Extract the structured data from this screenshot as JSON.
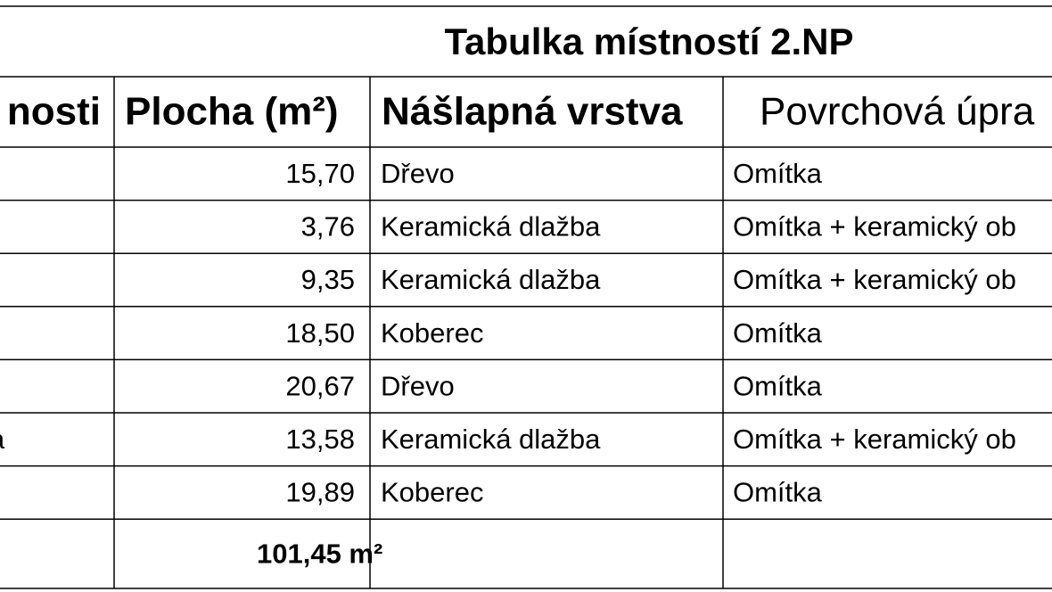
{
  "title": "Tabulka místností 2.NP",
  "table": {
    "header": [
      "nosti",
      "Plocha (m²)",
      "Nášlapná vrstva",
      "Povrchová úpra"
    ],
    "rows": [
      {
        "area": "15,70",
        "floor": "Dřevo",
        "surface": "Omítka"
      },
      {
        "area": "3,76",
        "floor": "Keramická dlažba",
        "surface": "Omítka + keramický ob"
      },
      {
        "area": "9,35",
        "floor": "Keramická dlažba",
        "surface": "Omítka + keramický ob"
      },
      {
        "area": "18,50",
        "floor": "Koberec",
        "surface": "Omítka"
      },
      {
        "area": "20,67",
        "floor": "Dřevo",
        "surface": "Omítka"
      },
      {
        "name": "a",
        "area": "13,58",
        "floor": "Keramická dlažba",
        "surface": "Omítka + keramický ob"
      },
      {
        "area": "19,89",
        "floor": "Koberec",
        "surface": "Omítka"
      }
    ],
    "total": "101,45 m²"
  }
}
